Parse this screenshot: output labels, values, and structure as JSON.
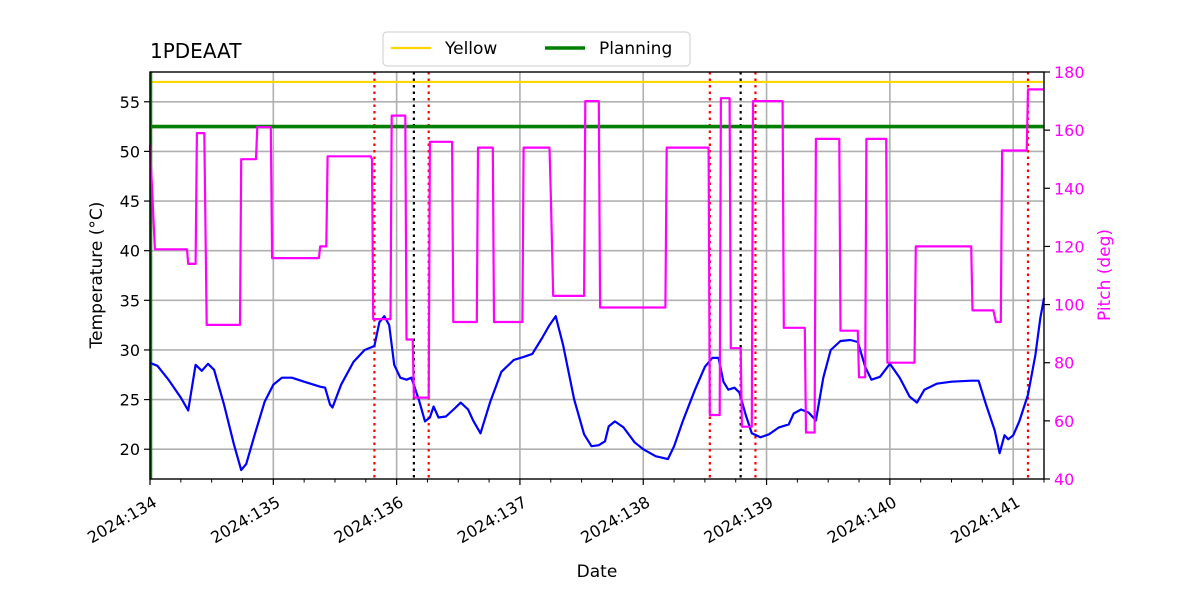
{
  "chart_data": {
    "type": "line",
    "title": "1PDEAAT",
    "xlabel": "Date",
    "ylabel": "Temperature ($^\\circ$C)",
    "ylabel_display": "Temperature (°C)",
    "y2label": "Pitch (deg)",
    "xlim": [
      134.0,
      141.25
    ],
    "ylim": [
      17.0,
      58.0
    ],
    "y2lim": [
      40,
      180
    ],
    "x_ticks": [
      134,
      135,
      136,
      137,
      138,
      139,
      140,
      141
    ],
    "x_tick_labels": [
      "2024:134",
      "2024:135",
      "2024:136",
      "2024:137",
      "2024:138",
      "2024:139",
      "2024:140",
      "2024:141"
    ],
    "y_ticks": [
      20,
      25,
      30,
      35,
      40,
      45,
      50,
      55
    ],
    "y_tick_labels": [
      "20",
      "25",
      "30",
      "35",
      "40",
      "45",
      "50",
      "55"
    ],
    "y2_ticks": [
      40,
      60,
      80,
      100,
      120,
      140,
      160,
      180
    ],
    "y2_tick_labels": [
      "40",
      "60",
      "80",
      "100",
      "120",
      "140",
      "160",
      "180"
    ],
    "grid": true,
    "legend": {
      "placement": "top-center-outside",
      "entries": [
        {
          "label": "Yellow",
          "color": "#ffd700"
        },
        {
          "label": "Planning",
          "color": "#008000"
        }
      ]
    },
    "hlines": [
      {
        "name": "Yellow",
        "y": 57.0,
        "color": "#ffd700"
      },
      {
        "name": "Planning",
        "y": 52.5,
        "color": "#008000"
      }
    ],
    "vlines": [
      {
        "x": 135.82,
        "color": "#ff0000",
        "style": "dotted"
      },
      {
        "x": 136.14,
        "color": "#000000",
        "style": "dotted"
      },
      {
        "x": 136.26,
        "color": "#ff0000",
        "style": "dotted"
      },
      {
        "x": 138.54,
        "color": "#ff0000",
        "style": "dotted"
      },
      {
        "x": 138.79,
        "color": "#000000",
        "style": "dotted"
      },
      {
        "x": 138.91,
        "color": "#ff0000",
        "style": "dotted"
      },
      {
        "x": 141.12,
        "color": "#ff0000",
        "style": "dotted"
      }
    ],
    "series": [
      {
        "name": "Temperature",
        "axis": "left",
        "color": "#0000ff",
        "points": [
          [
            134.0,
            28.7
          ],
          [
            134.06,
            28.4
          ],
          [
            134.15,
            27.0
          ],
          [
            134.25,
            25.2
          ],
          [
            134.31,
            23.9
          ],
          [
            134.37,
            28.5
          ],
          [
            134.42,
            27.9
          ],
          [
            134.47,
            28.6
          ],
          [
            134.52,
            28.0
          ],
          [
            134.6,
            24.5
          ],
          [
            134.68,
            20.5
          ],
          [
            134.74,
            17.9
          ],
          [
            134.78,
            18.5
          ],
          [
            134.85,
            21.5
          ],
          [
            134.93,
            24.8
          ],
          [
            135.0,
            26.5
          ],
          [
            135.07,
            27.2
          ],
          [
            135.15,
            27.2
          ],
          [
            135.25,
            26.8
          ],
          [
            135.38,
            26.3
          ],
          [
            135.42,
            26.2
          ],
          [
            135.46,
            24.5
          ],
          [
            135.48,
            24.2
          ],
          [
            135.55,
            26.5
          ],
          [
            135.65,
            28.8
          ],
          [
            135.74,
            30.0
          ],
          [
            135.82,
            30.4
          ],
          [
            135.86,
            32.8
          ],
          [
            135.9,
            33.4
          ],
          [
            135.94,
            32.5
          ],
          [
            135.98,
            28.5
          ],
          [
            136.03,
            27.2
          ],
          [
            136.08,
            27.0
          ],
          [
            136.12,
            27.2
          ],
          [
            136.18,
            25.0
          ],
          [
            136.23,
            22.8
          ],
          [
            136.27,
            23.2
          ],
          [
            136.3,
            24.3
          ],
          [
            136.34,
            23.2
          ],
          [
            136.4,
            23.3
          ],
          [
            136.47,
            24.1
          ],
          [
            136.52,
            24.7
          ],
          [
            136.58,
            24.0
          ],
          [
            136.62,
            22.9
          ],
          [
            136.68,
            21.6
          ],
          [
            136.76,
            24.8
          ],
          [
            136.85,
            27.8
          ],
          [
            136.95,
            29.0
          ],
          [
            137.03,
            29.3
          ],
          [
            137.1,
            29.6
          ],
          [
            137.18,
            31.2
          ],
          [
            137.24,
            32.5
          ],
          [
            137.29,
            33.4
          ],
          [
            137.35,
            30.5
          ],
          [
            137.44,
            25.0
          ],
          [
            137.52,
            21.5
          ],
          [
            137.58,
            20.3
          ],
          [
            137.64,
            20.4
          ],
          [
            137.69,
            20.8
          ],
          [
            137.72,
            22.3
          ],
          [
            137.77,
            22.8
          ],
          [
            137.84,
            22.2
          ],
          [
            137.93,
            20.7
          ],
          [
            138.0,
            20.0
          ],
          [
            138.1,
            19.3
          ],
          [
            138.2,
            19.0
          ],
          [
            138.25,
            20.3
          ],
          [
            138.32,
            22.8
          ],
          [
            138.42,
            26.0
          ],
          [
            138.5,
            28.3
          ],
          [
            138.56,
            29.2
          ],
          [
            138.61,
            29.2
          ],
          [
            138.65,
            26.8
          ],
          [
            138.69,
            26.0
          ],
          [
            138.74,
            26.2
          ],
          [
            138.78,
            25.7
          ],
          [
            138.83,
            23.5
          ],
          [
            138.88,
            21.6
          ],
          [
            138.95,
            21.2
          ],
          [
            139.02,
            21.5
          ],
          [
            139.1,
            22.2
          ],
          [
            139.18,
            22.5
          ],
          [
            139.22,
            23.6
          ],
          [
            139.28,
            24.0
          ],
          [
            139.34,
            23.7
          ],
          [
            139.4,
            22.9
          ],
          [
            139.46,
            27.2
          ],
          [
            139.52,
            30.0
          ],
          [
            139.6,
            30.9
          ],
          [
            139.68,
            31.0
          ],
          [
            139.74,
            30.8
          ],
          [
            139.8,
            28.3
          ],
          [
            139.85,
            27.0
          ],
          [
            139.92,
            27.3
          ],
          [
            140.0,
            28.6
          ],
          [
            140.08,
            27.2
          ],
          [
            140.16,
            25.3
          ],
          [
            140.22,
            24.7
          ],
          [
            140.28,
            26.0
          ],
          [
            140.38,
            26.6
          ],
          [
            140.5,
            26.8
          ],
          [
            140.66,
            26.9
          ],
          [
            140.72,
            26.9
          ],
          [
            140.78,
            24.5
          ],
          [
            140.85,
            21.9
          ],
          [
            140.89,
            19.6
          ],
          [
            140.93,
            21.4
          ],
          [
            140.96,
            21.0
          ],
          [
            141.0,
            21.4
          ],
          [
            141.05,
            22.8
          ],
          [
            141.12,
            25.5
          ],
          [
            141.18,
            29.5
          ],
          [
            141.22,
            33.2
          ],
          [
            141.25,
            35.2
          ]
        ]
      },
      {
        "name": "Pitch",
        "axis": "right",
        "color": "#ff00ff",
        "points": [
          [
            134.0,
            155
          ],
          [
            134.04,
            119
          ],
          [
            134.3,
            119
          ],
          [
            134.31,
            114
          ],
          [
            134.37,
            114
          ],
          [
            134.38,
            159
          ],
          [
            134.44,
            159
          ],
          [
            134.46,
            93
          ],
          [
            134.73,
            93
          ],
          [
            134.74,
            150
          ],
          [
            134.86,
            150
          ],
          [
            134.87,
            161
          ],
          [
            134.98,
            161
          ],
          [
            134.99,
            116
          ],
          [
            135.37,
            116
          ],
          [
            135.38,
            120
          ],
          [
            135.43,
            120
          ],
          [
            135.44,
            151
          ],
          [
            135.79,
            151
          ],
          [
            135.8,
            150
          ],
          [
            135.81,
            95
          ],
          [
            135.95,
            95
          ],
          [
            135.96,
            165
          ],
          [
            136.07,
            165
          ],
          [
            136.08,
            88
          ],
          [
            136.13,
            88
          ],
          [
            136.14,
            68
          ],
          [
            136.26,
            68
          ],
          [
            136.27,
            156
          ],
          [
            136.45,
            156
          ],
          [
            136.46,
            94
          ],
          [
            136.65,
            94
          ],
          [
            136.66,
            154
          ],
          [
            136.78,
            154
          ],
          [
            136.79,
            94
          ],
          [
            137.02,
            94
          ],
          [
            137.03,
            154
          ],
          [
            137.24,
            154
          ],
          [
            137.25,
            138
          ],
          [
            137.27,
            103
          ],
          [
            137.52,
            103
          ],
          [
            137.53,
            170
          ],
          [
            137.64,
            170
          ],
          [
            137.65,
            99
          ],
          [
            138.18,
            99
          ],
          [
            138.19,
            154
          ],
          [
            138.53,
            154
          ],
          [
            138.54,
            62
          ],
          [
            138.62,
            62
          ],
          [
            138.63,
            171
          ],
          [
            138.7,
            171
          ],
          [
            138.71,
            85
          ],
          [
            138.79,
            85
          ],
          [
            138.8,
            58
          ],
          [
            138.88,
            58
          ],
          [
            138.89,
            170
          ],
          [
            139.13,
            170
          ],
          [
            139.14,
            92
          ],
          [
            139.31,
            92
          ],
          [
            139.32,
            56
          ],
          [
            139.39,
            56
          ],
          [
            139.4,
            157
          ],
          [
            139.59,
            157
          ],
          [
            139.6,
            91
          ],
          [
            139.74,
            91
          ],
          [
            139.75,
            75
          ],
          [
            139.8,
            75
          ],
          [
            139.81,
            157
          ],
          [
            139.97,
            157
          ],
          [
            139.98,
            80
          ],
          [
            140.2,
            80
          ],
          [
            140.21,
            120
          ],
          [
            140.66,
            120
          ],
          [
            140.67,
            98
          ],
          [
            140.84,
            98
          ],
          [
            140.86,
            94
          ],
          [
            140.9,
            94
          ],
          [
            140.91,
            153
          ],
          [
            141.11,
            153
          ],
          [
            141.12,
            174
          ],
          [
            141.25,
            174
          ]
        ]
      }
    ]
  }
}
